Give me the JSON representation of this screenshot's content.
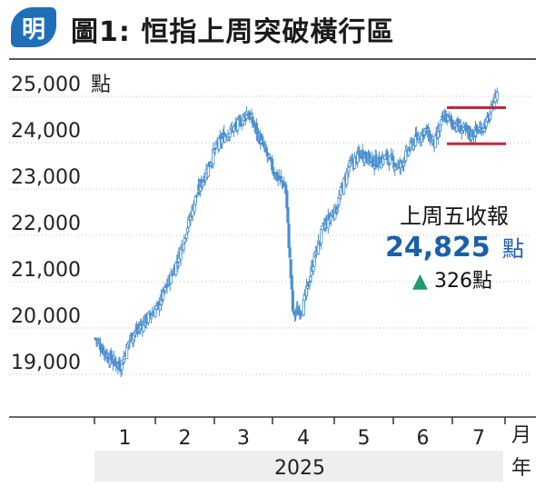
{
  "header": {
    "logo_char": "明",
    "title": "圖1: 恒指上周突破橫行區"
  },
  "annotation": {
    "label": "上周五收報",
    "value": "24,825",
    "value_unit": "點",
    "change_arrow": "▲",
    "change_value": "326",
    "change_unit": "點"
  },
  "colors": {
    "candle": "#4a8fd0",
    "range_lines": "#c0283a",
    "arrow": "#1f9a6a",
    "year_band": "#eeeeee"
  },
  "chart_data": {
    "type": "candlestick",
    "title": "恒指上周突破橫行區",
    "y_unit": "點",
    "x_unit": "月",
    "year_label": "年",
    "year": "2025",
    "y_ticks": [
      "25,000",
      "24,000",
      "23,000",
      "22,000",
      "21,000",
      "20,000",
      "19,000"
    ],
    "y_tick_values": [
      25000,
      24000,
      23000,
      22000,
      21000,
      20000,
      19000
    ],
    "ylim": [
      18500,
      25200
    ],
    "x_ticks": [
      "1",
      "2",
      "3",
      "4",
      "5",
      "6",
      "7"
    ],
    "month_starts": [
      1,
      2,
      3,
      4,
      5,
      6,
      7
    ],
    "range_lines": [
      {
        "value": 24480
      },
      {
        "value": 23700
      }
    ],
    "close_points": [
      {
        "month": 1.0,
        "close": 19500
      },
      {
        "month": 1.2,
        "close": 19100
      },
      {
        "month": 1.4,
        "close": 18900
      },
      {
        "month": 1.55,
        "close": 19500
      },
      {
        "month": 1.8,
        "close": 19900
      },
      {
        "month": 2.0,
        "close": 20200
      },
      {
        "month": 2.3,
        "close": 21200
      },
      {
        "month": 2.6,
        "close": 22600
      },
      {
        "month": 2.9,
        "close": 23600
      },
      {
        "month": 3.05,
        "close": 23900
      },
      {
        "month": 3.25,
        "close": 24100
      },
      {
        "month": 3.4,
        "close": 24400
      },
      {
        "month": 3.6,
        "close": 23800
      },
      {
        "month": 3.85,
        "close": 23000
      },
      {
        "month": 4.0,
        "close": 22800
      },
      {
        "month": 4.12,
        "close": 20000
      },
      {
        "month": 4.28,
        "close": 20200
      },
      {
        "month": 4.45,
        "close": 21200
      },
      {
        "month": 4.6,
        "close": 21900
      },
      {
        "month": 4.8,
        "close": 22300
      },
      {
        "month": 5.0,
        "close": 23200
      },
      {
        "month": 5.2,
        "close": 23500
      },
      {
        "month": 5.4,
        "close": 23300
      },
      {
        "month": 5.6,
        "close": 23400
      },
      {
        "month": 5.8,
        "close": 23200
      },
      {
        "month": 6.0,
        "close": 23700
      },
      {
        "month": 6.2,
        "close": 24000
      },
      {
        "month": 6.35,
        "close": 23700
      },
      {
        "month": 6.5,
        "close": 24300
      },
      {
        "month": 6.7,
        "close": 24100
      },
      {
        "month": 6.9,
        "close": 23900
      },
      {
        "month": 7.05,
        "close": 24000
      },
      {
        "month": 7.2,
        "close": 24200
      },
      {
        "month": 7.33,
        "close": 24800
      }
    ]
  }
}
